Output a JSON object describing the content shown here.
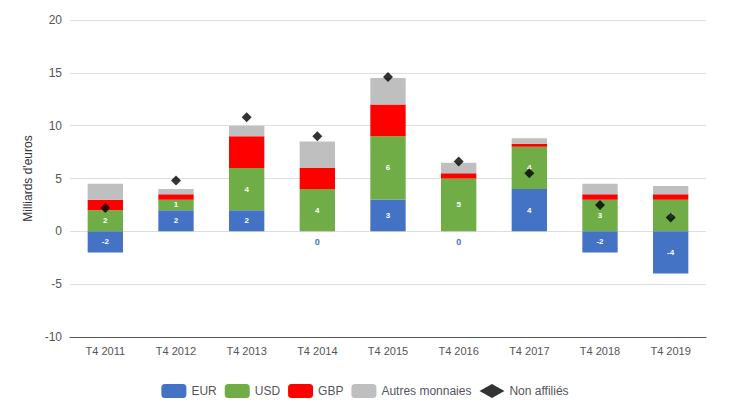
{
  "chart_data": {
    "type": "bar",
    "categories": [
      "T4 2011",
      "T4 2012",
      "T4 2013",
      "T4 2014",
      "T4 2015",
      "T4 2016",
      "T4 2017",
      "T4 2018",
      "T4 2019"
    ],
    "ylabel": "Milliards d'euros",
    "ylim": [
      -10,
      20
    ],
    "yticks": [
      -10,
      -5,
      0,
      5,
      10,
      15,
      20
    ],
    "grid": true,
    "stacked": true,
    "legend": "bottom",
    "series": [
      {
        "name": "EUR",
        "color": "#4472c4",
        "values": [
          -2,
          2,
          2,
          0,
          3,
          0,
          4,
          -2,
          -4
        ],
        "data_labels": true
      },
      {
        "name": "USD",
        "color": "#70ad47",
        "values": [
          2,
          1,
          4,
          4,
          6,
          5,
          4,
          3,
          3
        ],
        "data_labels": true
      },
      {
        "name": "GBP",
        "color": "#ff0000",
        "values": [
          1,
          0.5,
          3,
          2,
          3,
          0.5,
          0.3,
          0.5,
          0.5
        ]
      },
      {
        "name": "Autres monnaies",
        "color": "#bfbfbf",
        "values": [
          1.5,
          0.5,
          1,
          2.5,
          2.5,
          1,
          0.5,
          1,
          0.8
        ]
      },
      {
        "name": "Non affiliés",
        "type": "scatter",
        "marker": "diamond",
        "color": "#000000",
        "values": [
          2.2,
          4.8,
          10.8,
          9.0,
          14.6,
          6.6,
          5.5,
          2.5,
          1.3
        ]
      }
    ]
  }
}
